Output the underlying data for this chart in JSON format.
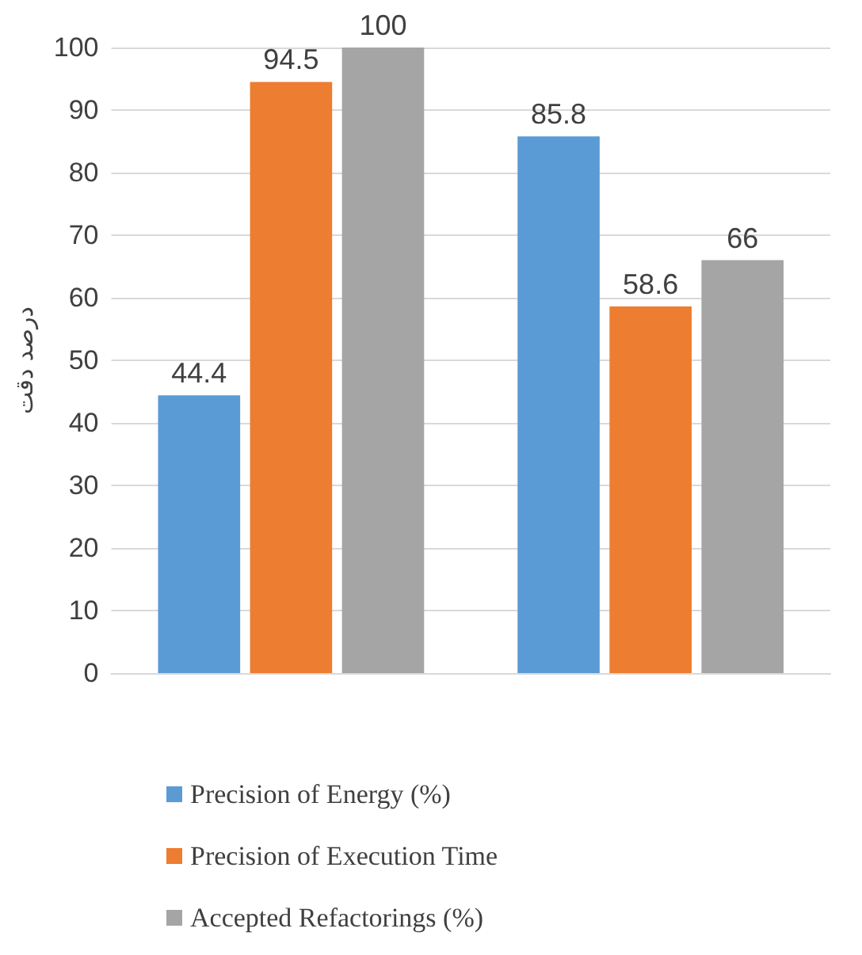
{
  "chart_data": {
    "type": "bar",
    "ylabel": "درصد دقت",
    "categories": [
      null,
      null
    ],
    "series": [
      {
        "name": "Precision of Energy (%)",
        "color": "#5b9bd5",
        "values": [
          44.4,
          85.8
        ]
      },
      {
        "name": "Precision of Execution Time",
        "color": "#ed7d31",
        "values": [
          94.5,
          58.6
        ]
      },
      {
        "name": "Accepted Refactorings (%)",
        "color": "#a5a5a5",
        "values": [
          100,
          66
        ]
      }
    ],
    "ylim": [
      0,
      100
    ],
    "yticks": [
      0,
      10,
      20,
      30,
      40,
      50,
      60,
      70,
      80,
      90,
      100
    ],
    "grid": "y",
    "legend": "bottom",
    "data_labels": true
  }
}
